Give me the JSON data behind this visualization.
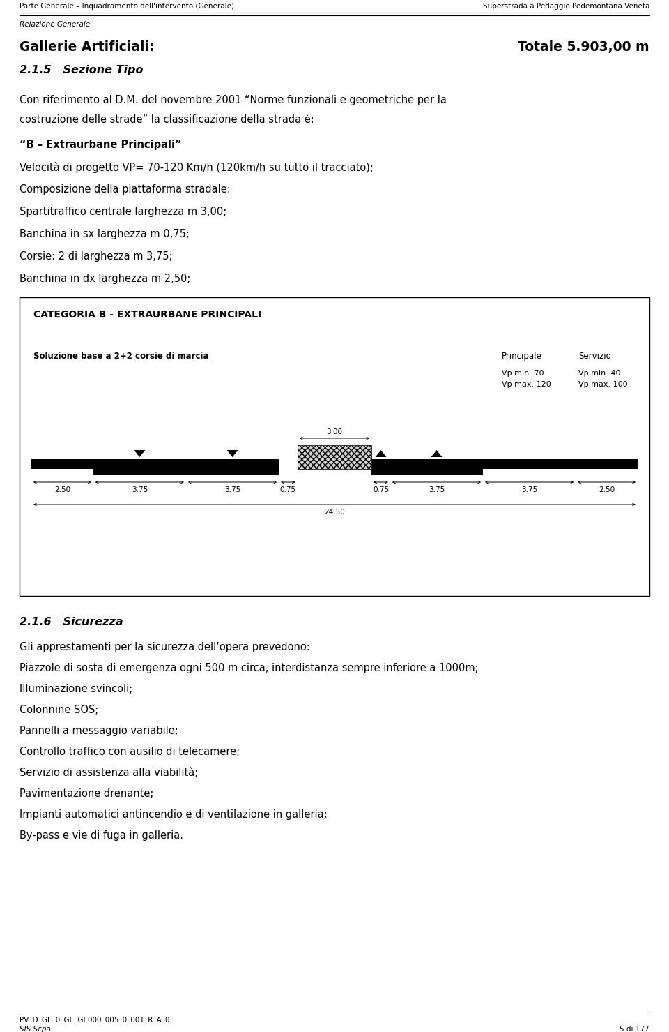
{
  "header_left": "Parte Generale – Inquadramento dell'intervento (Generale)",
  "header_right": "Superstrada a Pedaggio Pedemontana Veneta",
  "subheader": "Relazione Generale",
  "title_left": "Gallerie Artificiali:",
  "title_right": "Totale 5.903,00 m",
  "section_num": "2.1.5",
  "section_title": "Sezione Tipo",
  "para1_line1": "Con riferimento al D.M. del novembre 2001 “Norme funzionali e geometriche per la",
  "para1_line2": "costruzione delle strade” la classificazione della strada è:",
  "para2_bold": "“B – Extraurbane Principali”",
  "para3": "Velocità di progetto VP= 70-120 Km/h (120km/h su tutto il tracciato);",
  "para4": "Composizione della piattaforma stradale:",
  "para5": "Spartitraffico centrale larghezza m 3,00;",
  "para6": "Banchina in sx larghezza m 0,75;",
  "para7": "Corsie: 2 di larghezza m 3,75;",
  "para8": "Banchina in dx larghezza m 2,50;",
  "box_title": "CATEGORIA B - EXTRAURBANE PRINCIPALI",
  "box_sub1": "Soluzione base a 2+2 corsie di marcia",
  "box_col1": "Principale",
  "box_col2": "Servizio",
  "box_vp1_line1": "Vp min. 70",
  "box_vp1_line2": "Vp max. 120",
  "box_vp2_line1": "Vp min. 40",
  "box_vp2_line2": "Vp max. 100",
  "dim_center": "3.00",
  "dims": [
    "2.50",
    "3.75",
    "3.75",
    "0.75",
    "0.75",
    "3.75",
    "3.75",
    "2.50"
  ],
  "total_dim": "24.50",
  "section_num2": "2.1.6",
  "section_title2": "Sicurezza",
  "para_sec2_1": "Gli apprestamenti per la sicurezza dell’opera prevedono:",
  "para_sec2_2": "Piazzole di sosta di emergenza ogni 500 m circa, interdistanza sempre inferiore a 1000m;",
  "para_sec2_3": "Illuminazione svincoli;",
  "para_sec2_4": "Colonnine SOS;",
  "para_sec2_5": "Pannelli a messaggio variabile;",
  "para_sec2_6": "Controllo traffico con ausilio di telecamere;",
  "para_sec2_7": "Servizio di assistenza alla viabilità;",
  "para_sec2_8": "Pavimentazione drenante;",
  "para_sec2_9": "Impianti automatici antincendio e di ventilazione in galleria;",
  "para_sec2_10": "By-pass e vie di fuga in galleria.",
  "footer_left": "PV_D_GE_0_GE_GE000_005_0_001_R_A_0",
  "footer_right": "5 di 177",
  "footer_org": "SIS Scpa",
  "bg_color": "#ffffff",
  "text_color": "#000000"
}
